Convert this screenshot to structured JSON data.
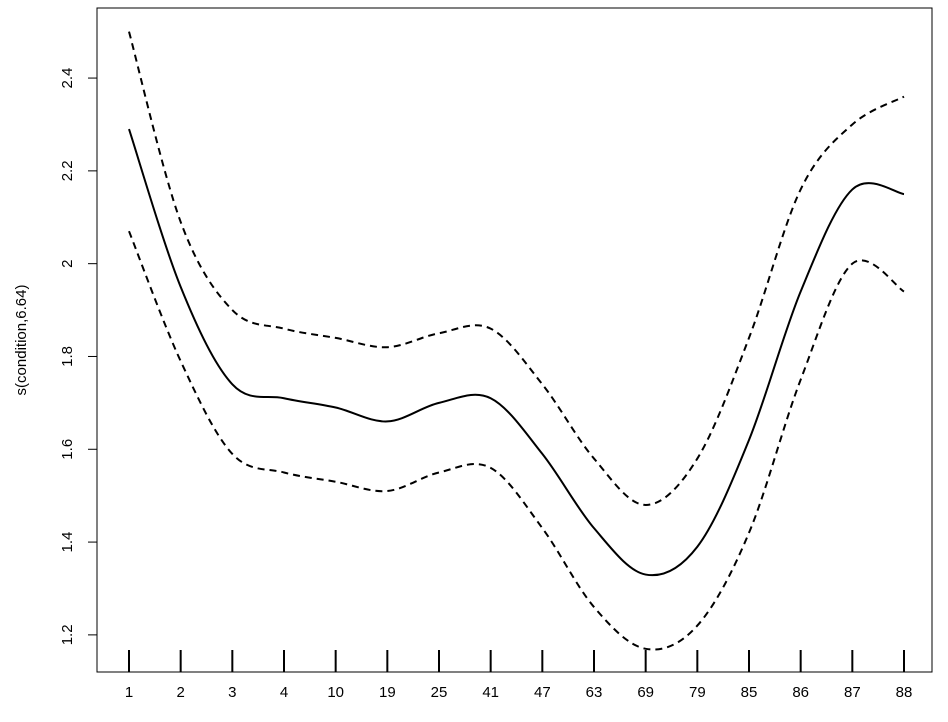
{
  "chart_data": {
    "type": "line",
    "y_label": "s(condition,6.64)",
    "categories": [
      "1",
      "2",
      "3",
      "4",
      "10",
      "19",
      "25",
      "41",
      "47",
      "63",
      "69",
      "79",
      "85",
      "86",
      "87",
      "88"
    ],
    "series": [
      {
        "color": "#000000",
        "line_style": "solid",
        "values": [
          2.29,
          1.95,
          1.74,
          1.71,
          1.69,
          1.66,
          1.7,
          1.71,
          1.59,
          1.43,
          1.33,
          1.39,
          1.62,
          1.94,
          2.16,
          2.15
        ]
      },
      {
        "color": "#000000",
        "line_style": "dashed",
        "values": [
          2.5,
          2.09,
          1.9,
          1.86,
          1.84,
          1.82,
          1.85,
          1.86,
          1.74,
          1.58,
          1.48,
          1.58,
          1.84,
          2.16,
          2.3,
          2.36
        ]
      },
      {
        "color": "#000000",
        "line_style": "dashed",
        "values": [
          2.07,
          1.79,
          1.59,
          1.55,
          1.53,
          1.51,
          1.55,
          1.56,
          1.43,
          1.26,
          1.17,
          1.22,
          1.42,
          1.75,
          2.0,
          1.94
        ]
      }
    ],
    "ylim": [
      1.12,
      2.551
    ],
    "yticks": [
      1.2,
      1.4,
      1.6,
      1.8,
      2.0,
      2.2,
      2.4
    ],
    "rug": true
  }
}
